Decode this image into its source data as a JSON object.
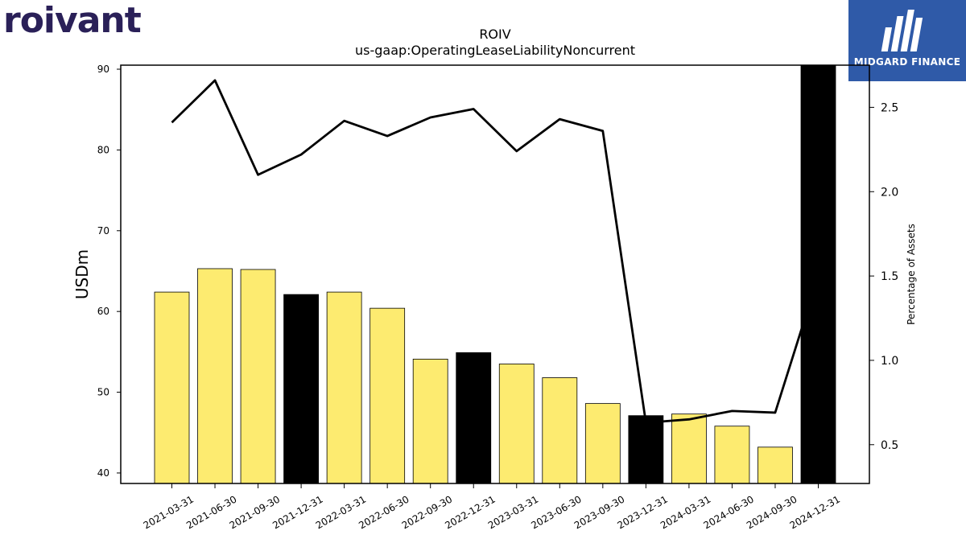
{
  "logos": {
    "left_text": "roivant",
    "left_color": "#2a2058",
    "right_text": "MIDGARD FINANCE",
    "right_bg": "#2f5aa8"
  },
  "chart_data": {
    "type": "bar",
    "title": "ROIV",
    "subtitle": "us-gaap:OperatingLeaseLiabilityNoncurrent",
    "ylabel": "USDm",
    "y2label": "Percentage of Assets",
    "ylim": [
      38.7,
      90.5
    ],
    "y2lim": [
      0.27,
      2.75
    ],
    "yticks": [
      40,
      50,
      60,
      70,
      80,
      90
    ],
    "y2ticks": [
      0.5,
      1.0,
      1.5,
      2.0,
      2.5
    ],
    "y2tick_labels": [
      "0.5",
      "1.0",
      "1.5",
      "2.0",
      "2.5"
    ],
    "categories": [
      "2021-03-31",
      "2021-06-30",
      "2021-09-30",
      "2021-12-31",
      "2022-03-31",
      "2022-06-30",
      "2022-09-30",
      "2022-12-31",
      "2023-03-31",
      "2023-06-30",
      "2023-09-30",
      "2023-12-31",
      "2024-03-31",
      "2024-06-30",
      "2024-09-30",
      "2024-12-31"
    ],
    "series": [
      {
        "type": "bar",
        "axis": "left",
        "values": [
          62.4,
          65.3,
          65.2,
          62.1,
          62.4,
          60.4,
          54.1,
          54.9,
          53.5,
          51.8,
          48.6,
          47.1,
          47.3,
          45.8,
          43.2,
          95.0
        ],
        "colors": [
          "#fdeb70",
          "#fdeb70",
          "#fdeb70",
          "#000000",
          "#fdeb70",
          "#fdeb70",
          "#fdeb70",
          "#000000",
          "#fdeb70",
          "#fdeb70",
          "#fdeb70",
          "#000000",
          "#fdeb70",
          "#fdeb70",
          "#fdeb70",
          "#000000"
        ]
      },
      {
        "type": "line",
        "axis": "right",
        "values": [
          2.41,
          2.66,
          2.1,
          2.22,
          2.42,
          2.33,
          2.44,
          2.49,
          2.24,
          2.43,
          2.36,
          0.63,
          0.65,
          0.7,
          0.69,
          1.5
        ],
        "color": "#000000"
      }
    ],
    "grid": false,
    "legend": "none"
  }
}
